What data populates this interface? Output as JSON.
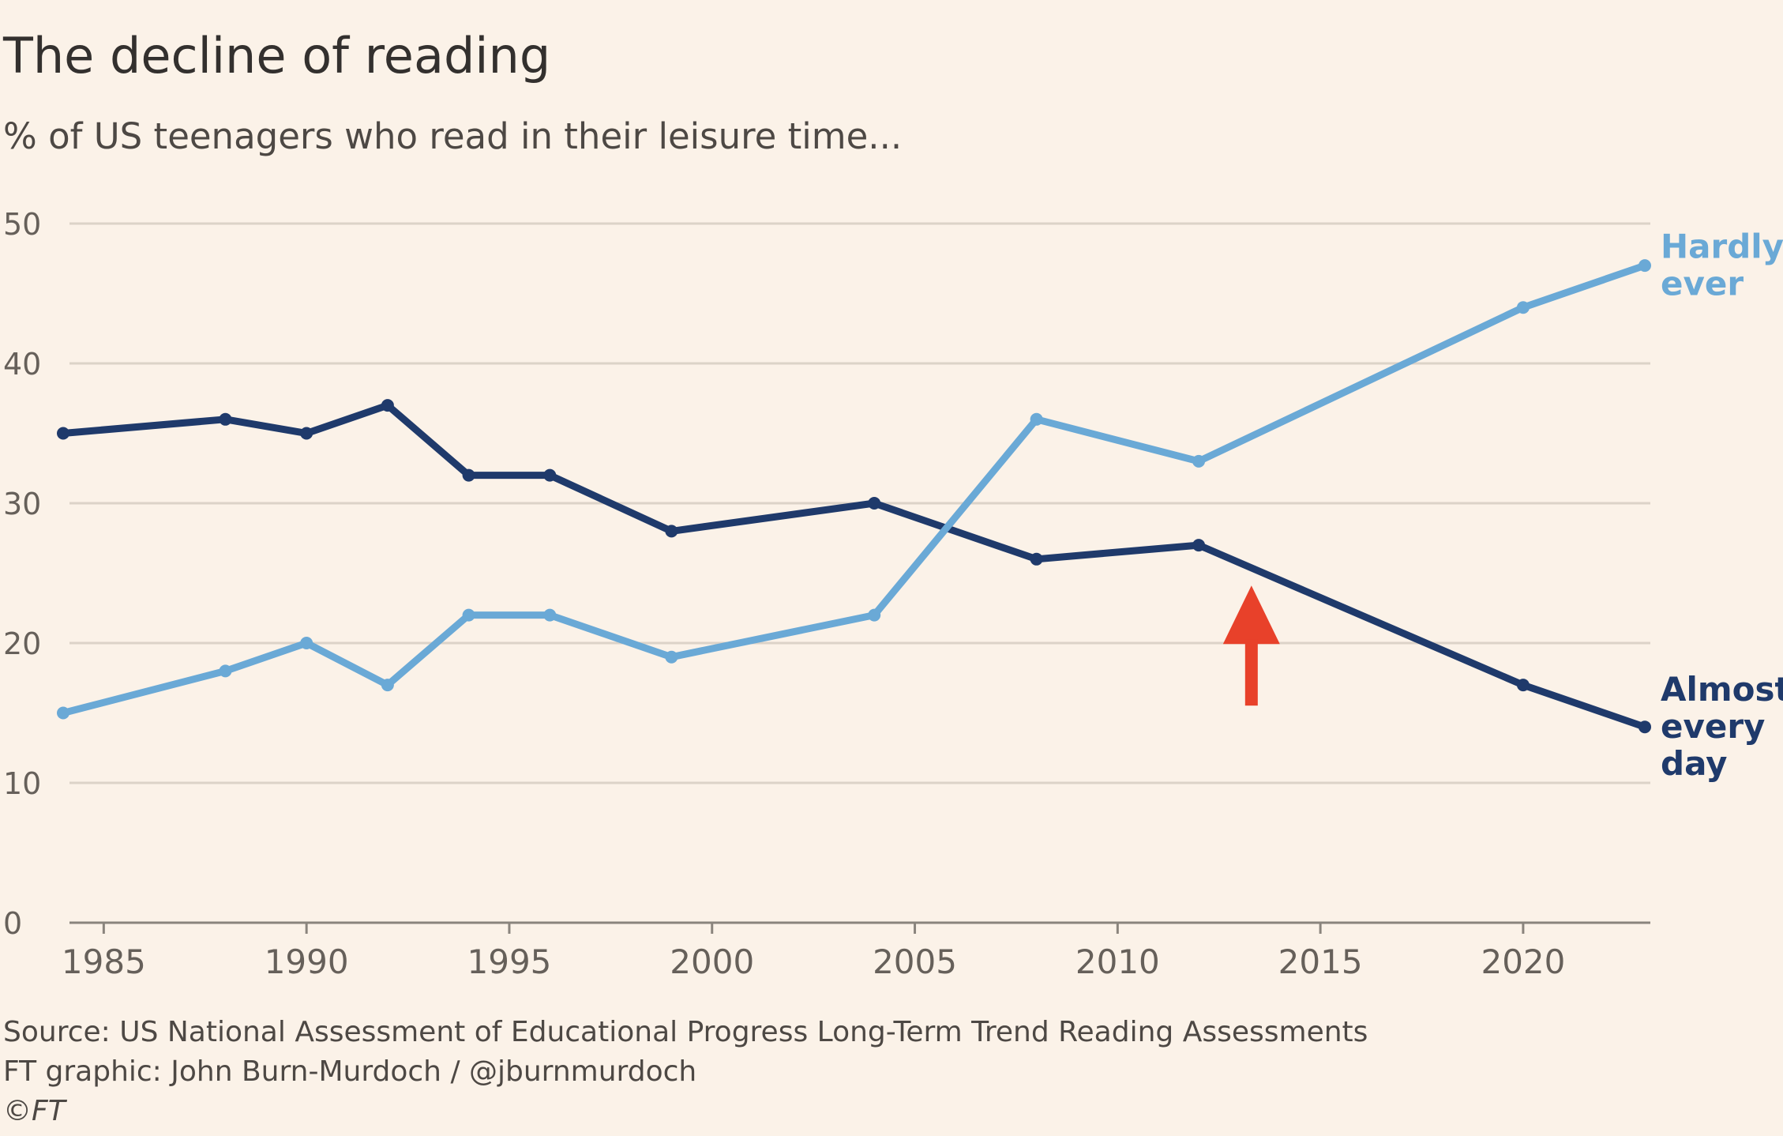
{
  "header": {
    "title": "The decline of reading",
    "subtitle": "% of US teenagers who read in their leisure time..."
  },
  "footer": {
    "source": "Source: US National Assessment of Educational Progress Long-Term Trend Reading Assessments",
    "credit": "FT graphic: John Burn-Murdoch / @jburnmurdoch",
    "copyright": "©FT"
  },
  "colors": {
    "background": "#fbf2e8",
    "almost_every_day": "#1f3a6b",
    "hardly_ever": "#6aa9d6",
    "gridline": "#dcd3c8",
    "axis": "#8a847d",
    "tick_text": "#66605a",
    "annotation_arrow": "#e8412a"
  },
  "chart_data": {
    "type": "line",
    "title": "The decline of reading",
    "subtitle": "% of US teenagers who read in their leisure time...",
    "xlabel": "",
    "ylabel": "",
    "xlim": [
      1984,
      2023
    ],
    "ylim": [
      0,
      50
    ],
    "x_ticks": [
      1985,
      1990,
      1995,
      2000,
      2005,
      2010,
      2015,
      2020
    ],
    "y_ticks": [
      0,
      10,
      20,
      30,
      40,
      50
    ],
    "grid": true,
    "legend": "direct labels at right end of lines",
    "series": [
      {
        "name": "Almost every day",
        "label_lines": [
          "Almost",
          "every",
          "day"
        ],
        "color": "#1f3a6b",
        "x": [
          1984,
          1988,
          1990,
          1992,
          1994,
          1996,
          1999,
          2004,
          2008,
          2012,
          2020,
          2023
        ],
        "values": [
          35,
          36,
          35,
          37,
          32,
          32,
          28,
          30,
          26,
          27,
          17,
          14
        ]
      },
      {
        "name": "Hardly ever",
        "label_lines": [
          "Hardly",
          "ever"
        ],
        "color": "#6aa9d6",
        "x": [
          1984,
          1988,
          1990,
          1992,
          1994,
          1996,
          1999,
          2004,
          2008,
          2012,
          2020,
          2023
        ],
        "values": [
          15,
          18,
          20,
          17,
          22,
          22,
          19,
          22,
          36,
          33,
          44,
          47
        ]
      }
    ],
    "annotations": [
      {
        "type": "arrow",
        "direction": "up",
        "x": 2013.3,
        "y": 24,
        "color": "#e8412a"
      }
    ]
  }
}
